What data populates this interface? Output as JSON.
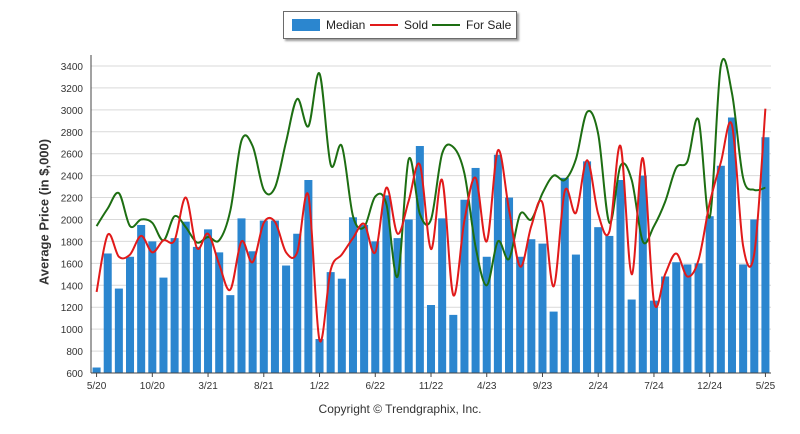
{
  "legend": {
    "median_label": "Median",
    "sold_label": "Sold",
    "for_sale_label": "For Sale"
  },
  "footer": {
    "copyright": "Copyright © Trendgraphix, Inc."
  },
  "colors": {
    "bar": "#2b86cf",
    "sold": "#e11a1a",
    "for_sale": "#1d6e12",
    "grid": "#d9d9d9",
    "axis": "#444444"
  },
  "chart_data": {
    "type": "bar",
    "ylabel": "Average Price (in $,000)",
    "ylim": [
      600,
      3500
    ],
    "y_ticks": [
      600,
      800,
      1000,
      1200,
      1400,
      1600,
      1800,
      2000,
      2200,
      2400,
      2600,
      2800,
      3000,
      3200,
      3400
    ],
    "x_tick_labels": [
      {
        "index": 0,
        "label": "5/20"
      },
      {
        "index": 5,
        "label": "10/20"
      },
      {
        "index": 10,
        "label": "3/21"
      },
      {
        "index": 15,
        "label": "8/21"
      },
      {
        "index": 20,
        "label": "1/22"
      },
      {
        "index": 25,
        "label": "6/22"
      },
      {
        "index": 30,
        "label": "11/22"
      },
      {
        "index": 35,
        "label": "4/23"
      },
      {
        "index": 40,
        "label": "9/23"
      },
      {
        "index": 45,
        "label": "2/24"
      },
      {
        "index": 50,
        "label": "7/24"
      },
      {
        "index": 55,
        "label": "12/24"
      },
      {
        "index": 60,
        "label": "5/25"
      }
    ],
    "grid": true,
    "legend_position": "top-center",
    "series": [
      {
        "name": "Median",
        "type": "bar",
        "values": [
          650,
          1690,
          1370,
          1660,
          1950,
          1800,
          1470,
          1830,
          1980,
          1750,
          1910,
          1700,
          1310,
          2010,
          1710,
          1990,
          1990,
          1580,
          1870,
          2360,
          910,
          1520,
          1460,
          2020,
          1950,
          1800,
          2220,
          1830,
          2000,
          2670,
          1220,
          2010,
          1130,
          2180,
          2470,
          1660,
          2590,
          2200,
          1660,
          1820,
          1780,
          1160,
          2380,
          1680,
          2530,
          1930,
          1850,
          2360,
          1270,
          2400,
          1260,
          1480,
          1610,
          1590,
          1600,
          2030,
          2490,
          2930,
          1590,
          2000,
          2750
        ]
      },
      {
        "name": "Sold",
        "type": "line",
        "values": [
          1340,
          1860,
          1660,
          1680,
          1850,
          1700,
          1810,
          1810,
          2200,
          1740,
          1870,
          1590,
          1360,
          1800,
          1610,
          1970,
          1980,
          1700,
          1700,
          2220,
          900,
          1540,
          1680,
          1830,
          1960,
          1700,
          2290,
          1870,
          2170,
          2500,
          1730,
          2360,
          1310,
          1990,
          2380,
          1800,
          2630,
          2090,
          1570,
          1940,
          2150,
          1390,
          2260,
          2060,
          2540,
          2050,
          1890,
          2670,
          1500,
          2560,
          1250,
          1500,
          1690,
          1480,
          1630,
          2150,
          2520,
          2860,
          1760,
          1690,
          3010
        ]
      },
      {
        "name": "For Sale",
        "type": "line",
        "values": [
          1940,
          2100,
          2240,
          1940,
          2000,
          1970,
          1810,
          2030,
          1930,
          1790,
          1840,
          1810,
          2080,
          2720,
          2670,
          2270,
          2290,
          2710,
          3100,
          2850,
          3330,
          2500,
          2670,
          2030,
          1930,
          2210,
          2140,
          1480,
          2550,
          2050,
          2000,
          2600,
          2660,
          2420,
          1750,
          1400,
          1800,
          1640,
          2050,
          2000,
          2240,
          2400,
          2360,
          2550,
          2980,
          2780,
          1970,
          2490,
          2360,
          1800,
          1940,
          2160,
          2470,
          2530,
          2910,
          2020,
          3400,
          3150,
          2380,
          2270,
          2290
        ]
      }
    ]
  }
}
